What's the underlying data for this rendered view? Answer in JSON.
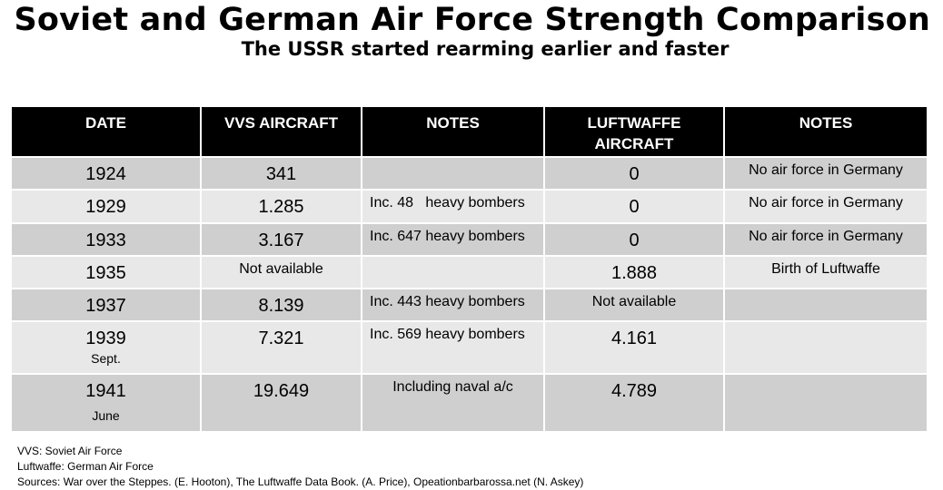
{
  "title": "Soviet and German Air Force Strength Comparison",
  "subtitle": "The USSR started rearming earlier and faster",
  "table": {
    "headers": [
      "DATE",
      "VVS AIRCRAFT",
      "NOTES",
      "LUFTWAFFE AIRCRAFT",
      "NOTES"
    ],
    "rows": [
      {
        "date": "1924",
        "date_sub": "",
        "vvs": "341",
        "vvs_notes": "",
        "luft": "0",
        "luft_notes": "No air force in Germany"
      },
      {
        "date": "1929",
        "date_sub": "",
        "vvs": "1.285",
        "vvs_notes": "Inc. 48   heavy bombers",
        "luft": "0",
        "luft_notes": "No air force in Germany"
      },
      {
        "date": "1933",
        "date_sub": "",
        "vvs": "3.167",
        "vvs_notes": "Inc. 647 heavy bombers",
        "luft": "0",
        "luft_notes": "No air force in Germany"
      },
      {
        "date": "1935",
        "date_sub": "",
        "vvs": "Not available",
        "vvs_notes": "",
        "luft": "1.888",
        "luft_notes": "Birth of Luftwaffe"
      },
      {
        "date": "1937",
        "date_sub": "",
        "vvs": "8.139",
        "vvs_notes": "Inc. 443 heavy bombers",
        "luft": "Not available",
        "luft_notes": ""
      },
      {
        "date": "1939",
        "date_sub": "Sept.",
        "vvs": "7.321",
        "vvs_notes": "Inc. 569 heavy bombers",
        "luft": "4.161",
        "luft_notes": ""
      },
      {
        "date": "1941",
        "date_sub": "June",
        "vvs": "19.649",
        "vvs_notes": "Including naval a/c",
        "luft": "4.789",
        "luft_notes": ""
      }
    ]
  },
  "footnotes": [
    "VVS: Soviet Air Force",
    "Luftwaffe: German Air Force",
    "Sources: War over the Steppes. (E. Hooton), The Luftwaffe Data Book. (A. Price), Opeationbarbarossa.net (N. Askey)"
  ]
}
